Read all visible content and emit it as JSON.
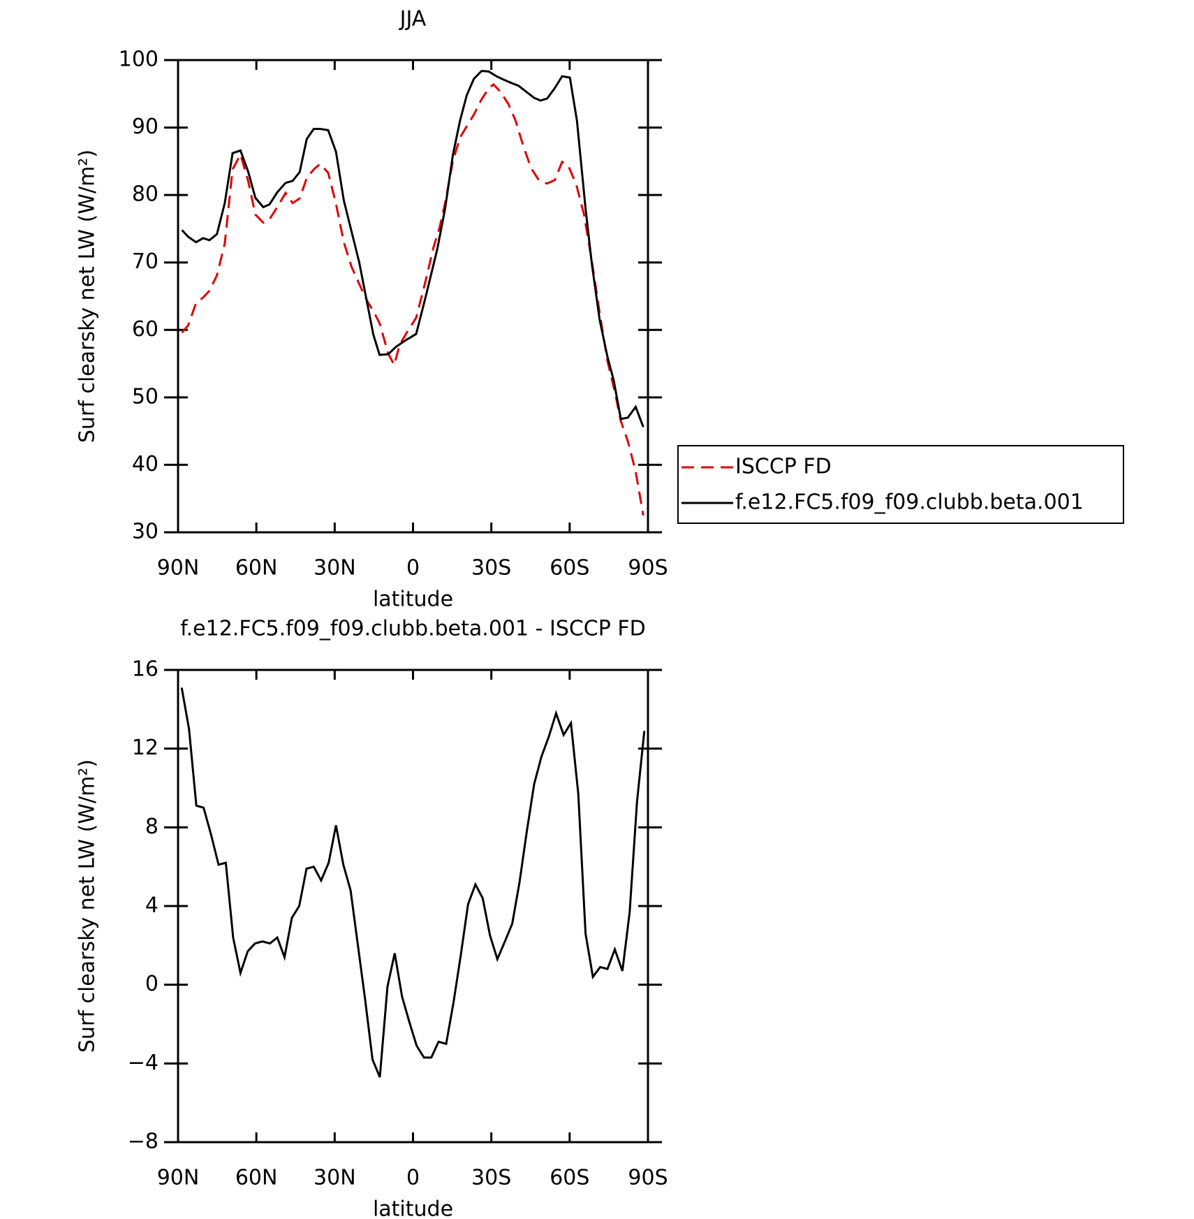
{
  "chart_data": [
    {
      "type": "line",
      "title": "JJA",
      "xlabel": "latitude",
      "ylabel": "Surf clearsky net LW (W/m²)",
      "xlim": [
        90,
        -90
      ],
      "xticks": [
        {
          "value": 90,
          "label": "90N"
        },
        {
          "value": 60,
          "label": "60N"
        },
        {
          "value": 30,
          "label": "30N"
        },
        0,
        {
          "value": -30,
          "label": "30S"
        },
        {
          "value": -60,
          "label": "60S"
        },
        {
          "value": -90,
          "label": "90S"
        }
      ],
      "ylim": [
        30,
        100
      ],
      "yticks": [
        30,
        40,
        50,
        60,
        70,
        80,
        90,
        100
      ],
      "legend": "right",
      "series": [
        {
          "name": "ISCCP FD",
          "color": "#e00000",
          "style": "dashed",
          "x": [
            88.5,
            86.1,
            83.1,
            80.4,
            78.0,
            75.1,
            72.1,
            69.1,
            66.1,
            63.1,
            60.4,
            57.4,
            55.0,
            52.0,
            48.8,
            46.1,
            43.4,
            40.7,
            38.0,
            35.6,
            32.5,
            29.5,
            26.5,
            23.6,
            20.6,
            17.6,
            15.2,
            12.8,
            9.5,
            7.2,
            5.1,
            1.8,
            -1.2,
            -4.8,
            -7.8,
            -10.2,
            -12.3,
            -15.3,
            -18.0,
            -20.6,
            -23.3,
            -26.3,
            -29.0,
            -30.8,
            -33.5,
            -36.5,
            -39.2,
            -42.2,
            -45.2,
            -48.2,
            -51.3,
            -54.3,
            -57.1,
            -59.5,
            -62.5,
            -65.5,
            -68.5,
            -71.5,
            -74.5,
            -77.5,
            -79.6,
            -82.3,
            -85.3,
            -88.2
          ],
          "values": [
            59.6,
            60.7,
            64.0,
            64.8,
            65.8,
            68.1,
            72.8,
            83.8,
            86.0,
            82.0,
            77.1,
            75.9,
            76.4,
            78.2,
            80.3,
            78.8,
            79.5,
            82.5,
            83.8,
            84.6,
            83.3,
            78.7,
            73.0,
            69.4,
            66.8,
            64.3,
            62.8,
            61.0,
            56.5,
            54.8,
            57.8,
            60.0,
            61.8,
            67.2,
            72.2,
            75.2,
            78.8,
            85.1,
            88.5,
            90.2,
            91.9,
            94.2,
            95.8,
            96.4,
            95.3,
            93.5,
            91.1,
            87.3,
            84.0,
            82.2,
            81.7,
            82.2,
            84.9,
            84.3,
            81.6,
            77.1,
            70.2,
            62.5,
            55.4,
            50.5,
            46.5,
            43.5,
            39.0,
            32.5
          ]
        },
        {
          "name": "f.e12.FC5.f09_f09.clubb.beta.001",
          "color": "#000000",
          "style": "solid",
          "x": [
            88.5,
            86.1,
            83.1,
            80.4,
            78.0,
            75.1,
            72.1,
            69.1,
            66.1,
            63.1,
            60.4,
            57.4,
            55.0,
            52.0,
            48.8,
            46.1,
            43.4,
            40.7,
            38.0,
            35.6,
            32.5,
            29.5,
            26.5,
            20.6,
            15.2,
            12.8,
            9.5,
            6.5,
            2.7,
            -1.2,
            -4.8,
            -9.3,
            -12.3,
            -15.3,
            -18.0,
            -20.6,
            -23.3,
            -26.3,
            -29.0,
            -32.0,
            -34.7,
            -37.7,
            -40.4,
            -43.4,
            -46.4,
            -48.8,
            -51.4,
            -54.4,
            -57.1,
            -60.1,
            -62.8,
            -66.1,
            -68.5,
            -71.5,
            -74.5,
            -76.9,
            -79.6,
            -82.3,
            -85.3,
            -88.2
          ],
          "values": [
            74.8,
            73.8,
            73.0,
            73.6,
            73.3,
            74.2,
            78.8,
            86.2,
            86.6,
            83.4,
            79.6,
            78.2,
            78.6,
            80.4,
            81.8,
            82.1,
            83.4,
            88.3,
            89.8,
            89.8,
            89.6,
            86.4,
            79.2,
            70.0,
            59.3,
            56.3,
            56.4,
            57.5,
            58.5,
            59.4,
            64.8,
            72.0,
            78.0,
            86.0,
            91.0,
            94.8,
            97.2,
            98.4,
            98.3,
            97.6,
            97.1,
            96.6,
            96.2,
            95.3,
            94.4,
            94.0,
            94.3,
            95.9,
            97.6,
            97.4,
            91.0,
            78.0,
            69.8,
            61.5,
            56.0,
            52.5,
            46.8,
            47.0,
            48.6,
            45.6
          ]
        }
      ]
    },
    {
      "type": "line",
      "title": "f.e12.FC5.f09_f09.clubb.beta.001 - ISCCP FD",
      "xlabel": "latitude",
      "ylabel": "Surf clearsky net LW (W/m²)",
      "xlim": [
        90,
        -90
      ],
      "xticks": [
        {
          "value": 90,
          "label": "90N"
        },
        {
          "value": 60,
          "label": "60N"
        },
        {
          "value": 30,
          "label": "30N"
        },
        0,
        {
          "value": -30,
          "label": "30S"
        },
        {
          "value": -60,
          "label": "60S"
        },
        {
          "value": -90,
          "label": "90S"
        }
      ],
      "ylim": [
        -8,
        16
      ],
      "yticks": [
        {
          "value": -8,
          "label": "−8"
        },
        {
          "value": -4,
          "label": "−4"
        },
        0,
        4,
        8,
        12,
        16
      ],
      "color": "#000000",
      "x": [
        88.6,
        85.8,
        83.0,
        80.2,
        77.3,
        74.5,
        71.7,
        68.9,
        66.1,
        63.3,
        60.5,
        57.7,
        54.8,
        52.0,
        49.2,
        46.4,
        43.6,
        40.8,
        38.0,
        35.2,
        32.3,
        29.5,
        26.7,
        23.9,
        21.1,
        18.3,
        15.5,
        12.7,
        9.8,
        7.0,
        4.2,
        1.4,
        -1.4,
        -4.2,
        -7.0,
        -9.8,
        -12.7,
        -15.5,
        -18.3,
        -21.1,
        -23.9,
        -26.7,
        -29.5,
        -32.3,
        -35.2,
        -38.0,
        -40.8,
        -43.6,
        -46.4,
        -49.2,
        -52.0,
        -54.8,
        -57.7,
        -60.5,
        -63.3,
        -66.1,
        -68.9,
        -71.7,
        -74.5,
        -77.3,
        -80.2,
        -83.0,
        -85.8,
        -88.6
      ],
      "values": [
        15.1,
        13.0,
        9.1,
        9.0,
        7.6,
        6.1,
        6.2,
        2.4,
        0.6,
        1.7,
        2.1,
        2.2,
        2.1,
        2.4,
        1.4,
        3.4,
        4.0,
        5.9,
        6.0,
        5.3,
        6.2,
        8.1,
        6.1,
        4.8,
        2.0,
        -0.8,
        -3.8,
        -4.7,
        -0.1,
        1.6,
        -0.6,
        -1.9,
        -3.1,
        -3.7,
        -3.7,
        -2.9,
        -3.0,
        -0.9,
        1.5,
        4.1,
        5.1,
        4.4,
        2.5,
        1.3,
        2.2,
        3.1,
        5.2,
        7.8,
        10.2,
        11.6,
        12.6,
        13.8,
        12.7,
        13.3,
        9.7,
        2.6,
        0.4,
        0.9,
        0.8,
        1.8,
        0.7,
        3.7,
        9.3,
        12.9
      ]
    }
  ]
}
